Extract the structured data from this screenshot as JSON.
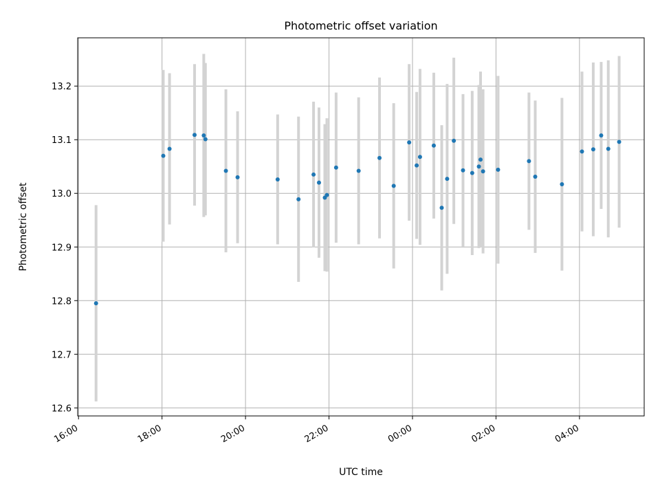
{
  "chart_data": {
    "type": "scatter",
    "title": "Photometric offset variation",
    "xlabel": "UTC time",
    "ylabel": "Photometric offset",
    "x_unit": "hours",
    "xlim": [
      15.98,
      29.55
    ],
    "ylim": [
      12.585,
      13.29
    ],
    "x_ticks": [
      16,
      18,
      20,
      22,
      24,
      26,
      28
    ],
    "x_tick_labels": [
      "16:00",
      "18:00",
      "20:00",
      "22:00",
      "00:00",
      "02:00",
      "04:00"
    ],
    "y_ticks": [
      12.6,
      12.7,
      12.8,
      12.9,
      13.0,
      13.1,
      13.2
    ],
    "y_tick_labels": [
      "12.6",
      "12.7",
      "12.8",
      "12.9",
      "13.0",
      "13.1",
      "13.2"
    ],
    "grid": true,
    "marker_color": "#1f77b4",
    "errorbar_color": "#d3d3d3",
    "points": [
      {
        "x": 16.42,
        "y": 12.795,
        "err": 0.183
      },
      {
        "x": 18.03,
        "y": 13.07,
        "err": 0.16
      },
      {
        "x": 18.18,
        "y": 13.083,
        "err": 0.141
      },
      {
        "x": 18.78,
        "y": 13.109,
        "err": 0.132
      },
      {
        "x": 19.0,
        "y": 13.108,
        "err": 0.152
      },
      {
        "x": 19.04,
        "y": 13.101,
        "err": 0.142
      },
      {
        "x": 19.53,
        "y": 13.042,
        "err": 0.152
      },
      {
        "x": 19.81,
        "y": 13.03,
        "err": 0.123
      },
      {
        "x": 20.77,
        "y": 13.026,
        "err": 0.121
      },
      {
        "x": 21.27,
        "y": 12.989,
        "err": 0.154
      },
      {
        "x": 21.63,
        "y": 13.035,
        "err": 0.136
      },
      {
        "x": 21.76,
        "y": 13.02,
        "err": 0.14
      },
      {
        "x": 21.9,
        "y": 12.992,
        "err": 0.137
      },
      {
        "x": 21.95,
        "y": 12.997,
        "err": 0.143
      },
      {
        "x": 22.17,
        "y": 13.048,
        "err": 0.14
      },
      {
        "x": 22.71,
        "y": 13.042,
        "err": 0.137
      },
      {
        "x": 23.21,
        "y": 13.066,
        "err": 0.15
      },
      {
        "x": 23.55,
        "y": 13.014,
        "err": 0.154
      },
      {
        "x": 23.92,
        "y": 13.095,
        "err": 0.146
      },
      {
        "x": 24.1,
        "y": 13.052,
        "err": 0.137
      },
      {
        "x": 24.18,
        "y": 13.068,
        "err": 0.164
      },
      {
        "x": 24.51,
        "y": 13.089,
        "err": 0.136
      },
      {
        "x": 24.7,
        "y": 12.973,
        "err": 0.154
      },
      {
        "x": 24.83,
        "y": 13.027,
        "err": 0.177
      },
      {
        "x": 24.99,
        "y": 13.098,
        "err": 0.155
      },
      {
        "x": 25.21,
        "y": 13.043,
        "err": 0.142
      },
      {
        "x": 25.43,
        "y": 13.038,
        "err": 0.153
      },
      {
        "x": 25.59,
        "y": 13.05,
        "err": 0.152
      },
      {
        "x": 25.63,
        "y": 13.063,
        "err": 0.164
      },
      {
        "x": 25.69,
        "y": 13.041,
        "err": 0.153
      },
      {
        "x": 26.05,
        "y": 13.044,
        "err": 0.175
      },
      {
        "x": 26.79,
        "y": 13.06,
        "err": 0.128
      },
      {
        "x": 26.94,
        "y": 13.031,
        "err": 0.142
      },
      {
        "x": 27.58,
        "y": 13.017,
        "err": 0.161
      },
      {
        "x": 28.06,
        "y": 13.078,
        "err": 0.149
      },
      {
        "x": 28.33,
        "y": 13.082,
        "err": 0.162
      },
      {
        "x": 28.52,
        "y": 13.108,
        "err": 0.137
      },
      {
        "x": 28.69,
        "y": 13.083,
        "err": 0.165
      },
      {
        "x": 28.95,
        "y": 13.096,
        "err": 0.16
      }
    ]
  }
}
